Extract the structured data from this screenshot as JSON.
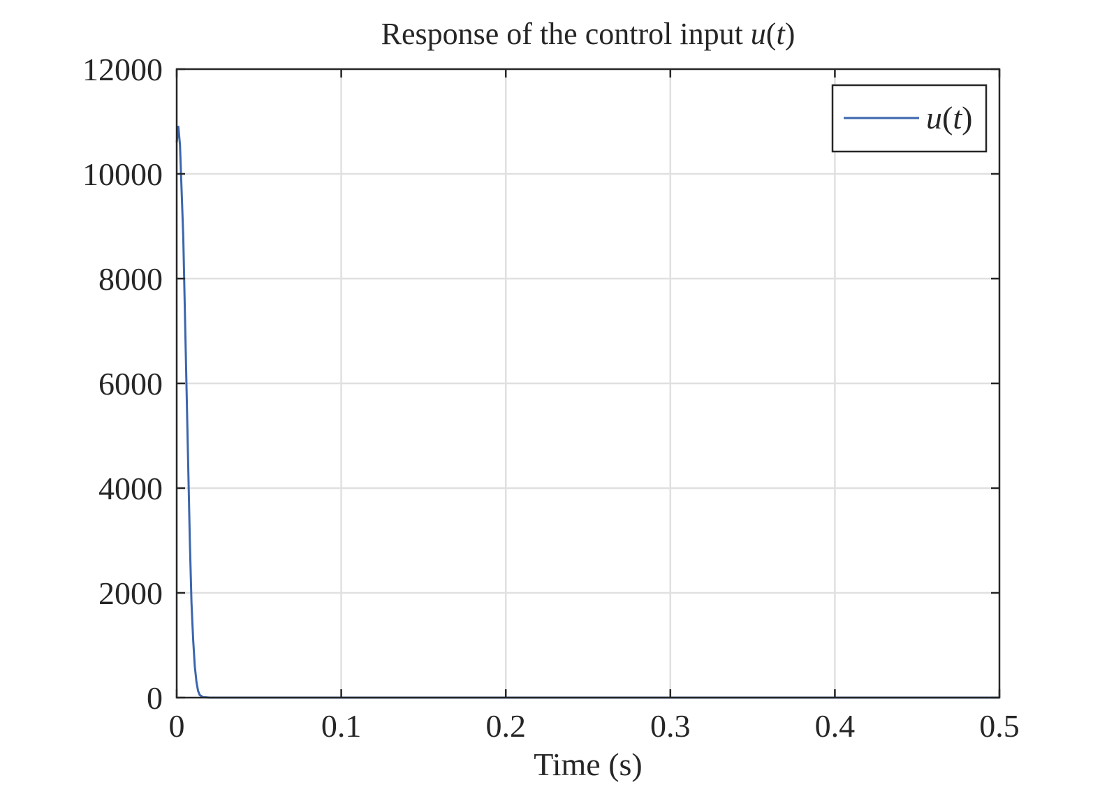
{
  "chart_data": {
    "type": "line",
    "title": "Response of the control input u(t)",
    "xlabel": "Time (s)",
    "ylabel": "",
    "xlim": [
      0,
      0.5
    ],
    "ylim": [
      0,
      12000
    ],
    "xticks": [
      0,
      0.1,
      0.2,
      0.3,
      0.4,
      0.5
    ],
    "xtick_labels": [
      "0",
      "0.1",
      "0.2",
      "0.3",
      "0.4",
      "0.5"
    ],
    "yticks": [
      0,
      2000,
      4000,
      6000,
      8000,
      10000,
      12000
    ],
    "ytick_labels": [
      "0",
      "2000",
      "4000",
      "6000",
      "8000",
      "10000",
      "12000"
    ],
    "grid": true,
    "legend_position": "top-right",
    "series": [
      {
        "name": "u(t)",
        "color": "#3b66ae",
        "x": [
          0,
          0.001,
          0.002,
          0.004,
          0.006,
          0.008,
          0.009,
          0.01,
          0.011,
          0.012,
          0.013,
          0.014,
          0.016,
          0.02,
          0.03,
          0.1,
          0.2,
          0.3,
          0.4,
          0.5
        ],
        "y": [
          10600,
          10900,
          10550,
          8800,
          5900,
          3000,
          1800,
          1100,
          600,
          300,
          130,
          50,
          10,
          0,
          0,
          0,
          0,
          0,
          0,
          0
        ]
      }
    ]
  }
}
